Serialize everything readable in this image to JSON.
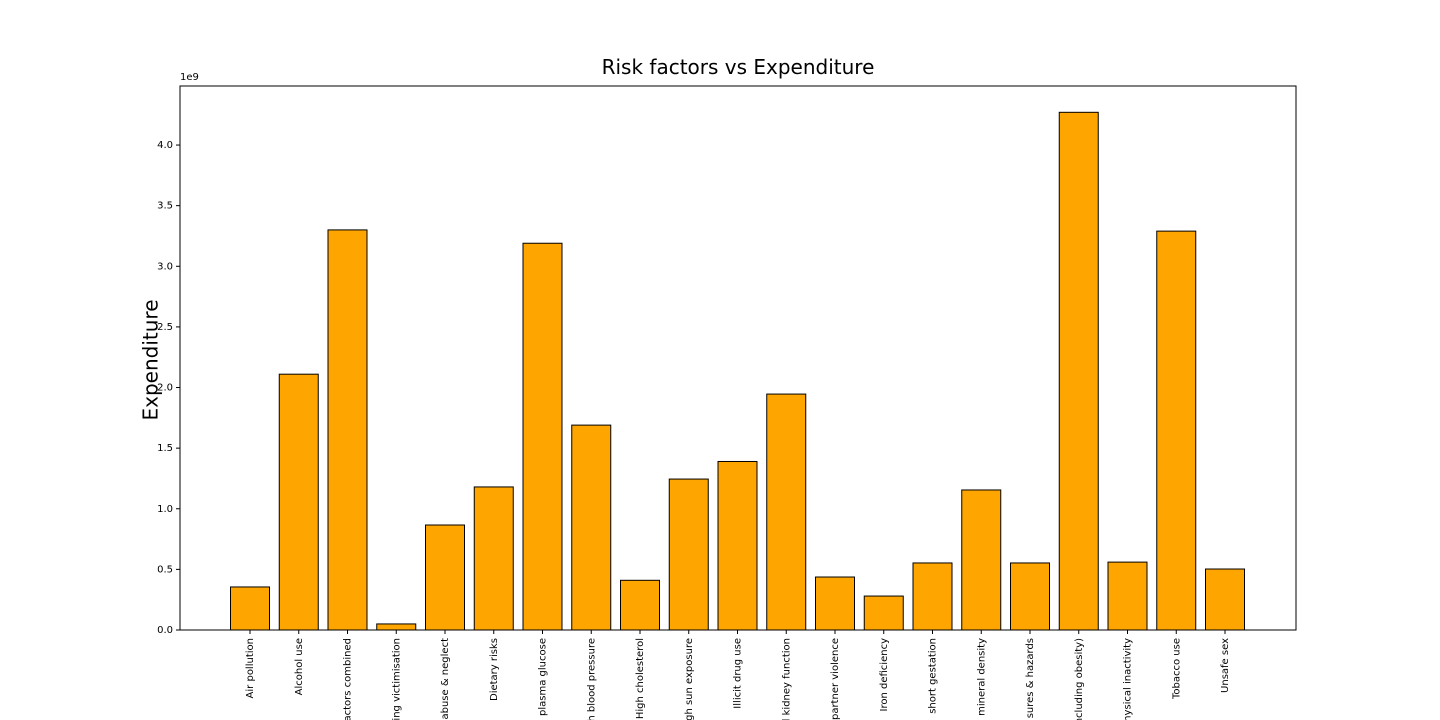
{
  "chart_data": {
    "type": "bar",
    "title": "Risk factors vs Expenditure",
    "ylabel": "Expenditure",
    "offset_label": "1e9",
    "categories": [
      "Air pollution",
      "Alcohol use",
      "actors combined",
      "ing victimisation",
      "abuse & neglect",
      "Dietary risks",
      "plasma glucose",
      "h blood pressure",
      "High cholesterol",
      "gh sun exposure",
      "Illicit drug use",
      "l kidney function",
      "partner violence",
      "Iron deficiency",
      "short gestation",
      "mineral density",
      "sures & hazards",
      "ncluding obesity)",
      "hysical inactivity",
      "Tobacco use",
      "Unsafe sex"
    ],
    "values": [
      0.355,
      2.11,
      3.3,
      0.05,
      0.866,
      1.18,
      3.19,
      1.69,
      0.41,
      1.245,
      1.39,
      1.946,
      0.437,
      0.28,
      0.553,
      1.155,
      0.553,
      4.27,
      0.56,
      3.29,
      0.503
    ],
    "color": "#ffa500",
    "ylim": [
      0,
      4.487
    ],
    "yticks": [
      {
        "value": 0,
        "label": "0.0"
      },
      0.5,
      {
        "value": 1,
        "label": "1.0"
      },
      1.5,
      {
        "value": 2,
        "label": "2.0"
      },
      2.5,
      {
        "value": 3,
        "label": "3.0"
      },
      3.5,
      {
        "value": 4,
        "label": "4.0"
      }
    ]
  }
}
